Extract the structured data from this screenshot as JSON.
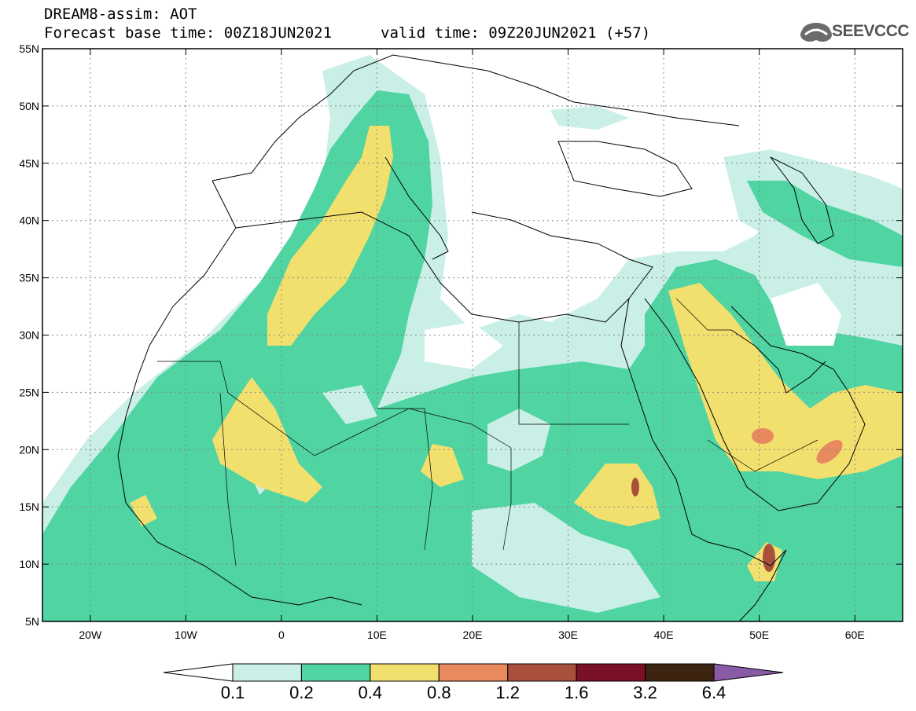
{
  "header": {
    "line1": "DREAM8-assim: AOT",
    "line2": "Forecast base time: 00Z18JUN2021",
    "valid_time": "valid time: 09Z20JUN2021 (+57)",
    "logo_text": "SEEVCCC",
    "logo_icon": "cloud-icon"
  },
  "map": {
    "lon_ticks": [
      "20W",
      "10W",
      "0",
      "10E",
      "20E",
      "30E",
      "40E",
      "50E",
      "60E"
    ],
    "lat_ticks": [
      "55N",
      "50N",
      "45N",
      "40N",
      "35N",
      "30N",
      "25N",
      "20N",
      "15N",
      "10N",
      "5N"
    ],
    "lon_range": [
      -25,
      65
    ],
    "lat_range": [
      5,
      55
    ],
    "grid": "dotted"
  },
  "colorbar": {
    "labels": [
      "0.1",
      "0.2",
      "0.4",
      "0.8",
      "1.2",
      "1.6",
      "3.2",
      "6.4"
    ],
    "colors": [
      "#c9efe6",
      "#4fd4a2",
      "#f2e06e",
      "#e8895e",
      "#a8503c",
      "#7a0f26",
      "#3d2410",
      "#8a5aa6"
    ],
    "under_color": "#ffffff"
  }
}
